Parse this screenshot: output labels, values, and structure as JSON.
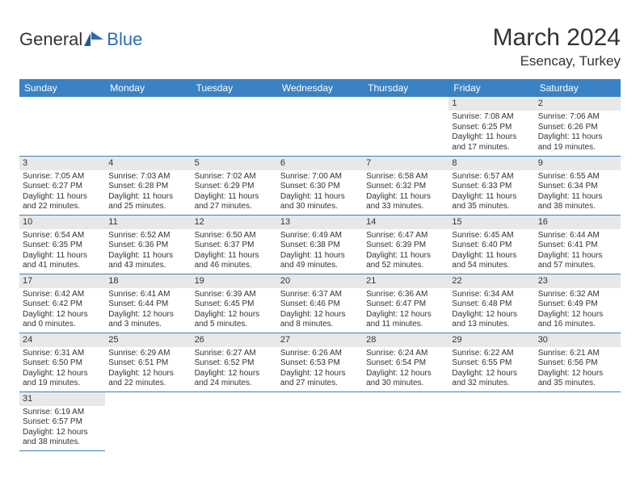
{
  "logo": {
    "part1": "General",
    "part2": "Blue"
  },
  "title": "March 2024",
  "location": "Esencay, Turkey",
  "colors": {
    "header_bg": "#3b82c4",
    "header_text": "#ffffff",
    "daynum_bg": "#e8e8e8",
    "text": "#333333",
    "row_border": "#3b82c4",
    "page_bg": "#ffffff",
    "logo_blue": "#2b6cb0"
  },
  "fonts": {
    "title_size": 30,
    "location_size": 17,
    "dayheader_size": 12,
    "daynum_size": 11,
    "body_size": 10
  },
  "day_headers": [
    "Sunday",
    "Monday",
    "Tuesday",
    "Wednesday",
    "Thursday",
    "Friday",
    "Saturday"
  ],
  "weeks": [
    [
      null,
      null,
      null,
      null,
      null,
      {
        "n": "1",
        "sr": "Sunrise: 7:08 AM",
        "ss": "Sunset: 6:25 PM",
        "dl": "Daylight: 11 hours and 17 minutes."
      },
      {
        "n": "2",
        "sr": "Sunrise: 7:06 AM",
        "ss": "Sunset: 6:26 PM",
        "dl": "Daylight: 11 hours and 19 minutes."
      }
    ],
    [
      {
        "n": "3",
        "sr": "Sunrise: 7:05 AM",
        "ss": "Sunset: 6:27 PM",
        "dl": "Daylight: 11 hours and 22 minutes."
      },
      {
        "n": "4",
        "sr": "Sunrise: 7:03 AM",
        "ss": "Sunset: 6:28 PM",
        "dl": "Daylight: 11 hours and 25 minutes."
      },
      {
        "n": "5",
        "sr": "Sunrise: 7:02 AM",
        "ss": "Sunset: 6:29 PM",
        "dl": "Daylight: 11 hours and 27 minutes."
      },
      {
        "n": "6",
        "sr": "Sunrise: 7:00 AM",
        "ss": "Sunset: 6:30 PM",
        "dl": "Daylight: 11 hours and 30 minutes."
      },
      {
        "n": "7",
        "sr": "Sunrise: 6:58 AM",
        "ss": "Sunset: 6:32 PM",
        "dl": "Daylight: 11 hours and 33 minutes."
      },
      {
        "n": "8",
        "sr": "Sunrise: 6:57 AM",
        "ss": "Sunset: 6:33 PM",
        "dl": "Daylight: 11 hours and 35 minutes."
      },
      {
        "n": "9",
        "sr": "Sunrise: 6:55 AM",
        "ss": "Sunset: 6:34 PM",
        "dl": "Daylight: 11 hours and 38 minutes."
      }
    ],
    [
      {
        "n": "10",
        "sr": "Sunrise: 6:54 AM",
        "ss": "Sunset: 6:35 PM",
        "dl": "Daylight: 11 hours and 41 minutes."
      },
      {
        "n": "11",
        "sr": "Sunrise: 6:52 AM",
        "ss": "Sunset: 6:36 PM",
        "dl": "Daylight: 11 hours and 43 minutes."
      },
      {
        "n": "12",
        "sr": "Sunrise: 6:50 AM",
        "ss": "Sunset: 6:37 PM",
        "dl": "Daylight: 11 hours and 46 minutes."
      },
      {
        "n": "13",
        "sr": "Sunrise: 6:49 AM",
        "ss": "Sunset: 6:38 PM",
        "dl": "Daylight: 11 hours and 49 minutes."
      },
      {
        "n": "14",
        "sr": "Sunrise: 6:47 AM",
        "ss": "Sunset: 6:39 PM",
        "dl": "Daylight: 11 hours and 52 minutes."
      },
      {
        "n": "15",
        "sr": "Sunrise: 6:45 AM",
        "ss": "Sunset: 6:40 PM",
        "dl": "Daylight: 11 hours and 54 minutes."
      },
      {
        "n": "16",
        "sr": "Sunrise: 6:44 AM",
        "ss": "Sunset: 6:41 PM",
        "dl": "Daylight: 11 hours and 57 minutes."
      }
    ],
    [
      {
        "n": "17",
        "sr": "Sunrise: 6:42 AM",
        "ss": "Sunset: 6:42 PM",
        "dl": "Daylight: 12 hours and 0 minutes."
      },
      {
        "n": "18",
        "sr": "Sunrise: 6:41 AM",
        "ss": "Sunset: 6:44 PM",
        "dl": "Daylight: 12 hours and 3 minutes."
      },
      {
        "n": "19",
        "sr": "Sunrise: 6:39 AM",
        "ss": "Sunset: 6:45 PM",
        "dl": "Daylight: 12 hours and 5 minutes."
      },
      {
        "n": "20",
        "sr": "Sunrise: 6:37 AM",
        "ss": "Sunset: 6:46 PM",
        "dl": "Daylight: 12 hours and 8 minutes."
      },
      {
        "n": "21",
        "sr": "Sunrise: 6:36 AM",
        "ss": "Sunset: 6:47 PM",
        "dl": "Daylight: 12 hours and 11 minutes."
      },
      {
        "n": "22",
        "sr": "Sunrise: 6:34 AM",
        "ss": "Sunset: 6:48 PM",
        "dl": "Daylight: 12 hours and 13 minutes."
      },
      {
        "n": "23",
        "sr": "Sunrise: 6:32 AM",
        "ss": "Sunset: 6:49 PM",
        "dl": "Daylight: 12 hours and 16 minutes."
      }
    ],
    [
      {
        "n": "24",
        "sr": "Sunrise: 6:31 AM",
        "ss": "Sunset: 6:50 PM",
        "dl": "Daylight: 12 hours and 19 minutes."
      },
      {
        "n": "25",
        "sr": "Sunrise: 6:29 AM",
        "ss": "Sunset: 6:51 PM",
        "dl": "Daylight: 12 hours and 22 minutes."
      },
      {
        "n": "26",
        "sr": "Sunrise: 6:27 AM",
        "ss": "Sunset: 6:52 PM",
        "dl": "Daylight: 12 hours and 24 minutes."
      },
      {
        "n": "27",
        "sr": "Sunrise: 6:26 AM",
        "ss": "Sunset: 6:53 PM",
        "dl": "Daylight: 12 hours and 27 minutes."
      },
      {
        "n": "28",
        "sr": "Sunrise: 6:24 AM",
        "ss": "Sunset: 6:54 PM",
        "dl": "Daylight: 12 hours and 30 minutes."
      },
      {
        "n": "29",
        "sr": "Sunrise: 6:22 AM",
        "ss": "Sunset: 6:55 PM",
        "dl": "Daylight: 12 hours and 32 minutes."
      },
      {
        "n": "30",
        "sr": "Sunrise: 6:21 AM",
        "ss": "Sunset: 6:56 PM",
        "dl": "Daylight: 12 hours and 35 minutes."
      }
    ],
    [
      {
        "n": "31",
        "sr": "Sunrise: 6:19 AM",
        "ss": "Sunset: 6:57 PM",
        "dl": "Daylight: 12 hours and 38 minutes."
      },
      null,
      null,
      null,
      null,
      null,
      null
    ]
  ]
}
